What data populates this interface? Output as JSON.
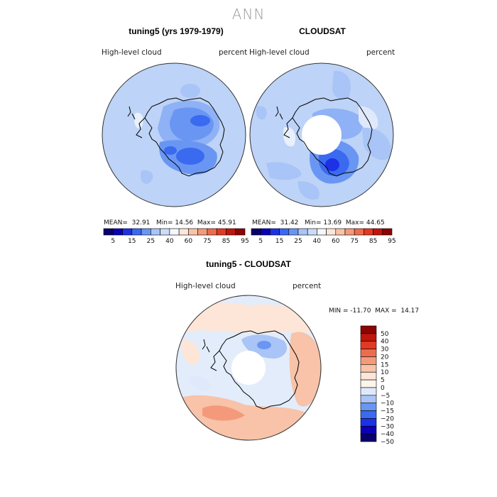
{
  "figure": {
    "title": "ANN"
  },
  "panels": [
    {
      "title": "tuning5 (yrs 1979-1979)",
      "variable": "High-level cloud",
      "units": "percent",
      "stats": {
        "mean_label": "MEAN=",
        "mean": "32.91",
        "min_label": "Min=",
        "min": "14.56",
        "max_label": "Max=",
        "max": "45.91"
      }
    },
    {
      "title": "CLOUDSAT",
      "variable": "High-level cloud",
      "units": "percent",
      "stats": {
        "mean_label": "MEAN=",
        "mean": "31.42",
        "min_label": "Min=",
        "min": "13.69",
        "max_label": "Max=",
        "max": "44.65"
      }
    },
    {
      "title": "tuning5 - CLOUDSAT",
      "variable": "High-level cloud",
      "units": "percent",
      "stats_text": "MIN = -11.70  MAX =  14.17"
    }
  ],
  "colors": {
    "ocean_base": "#bdd3f7",
    "diff_base": "#e3ecfb",
    "land_outline": "#000000"
  },
  "chart_data": [
    {
      "type": "heatmap",
      "projection": "south-polar-stereographic",
      "title": "tuning5 (yrs 1979-1979)",
      "variable": "High-level cloud",
      "units": "percent",
      "mean": 32.91,
      "min": 14.56,
      "max": 45.91,
      "colorbar": {
        "orientation": "horizontal",
        "levels": [
          5,
          10,
          15,
          20,
          25,
          30,
          40,
          50,
          60,
          70,
          75,
          80,
          85,
          90,
          95
        ],
        "tick_labels": [
          "5",
          "15",
          "25",
          "40",
          "60",
          "75",
          "85",
          "95"
        ],
        "colors": [
          "#08006e",
          "#0a00b8",
          "#1d31e6",
          "#3a6af0",
          "#6a96f3",
          "#a9c4f6",
          "#cbdcf8",
          "#f4f7fd",
          "#fde6d8",
          "#f8c3a8",
          "#f49a7b",
          "#ee6c4e",
          "#e23a22",
          "#c2150b",
          "#8c0404"
        ]
      }
    },
    {
      "type": "heatmap",
      "projection": "south-polar-stereographic",
      "title": "CLOUDSAT",
      "variable": "High-level cloud",
      "units": "percent",
      "mean": 31.42,
      "min": 13.69,
      "max": 44.65,
      "colorbar": {
        "orientation": "horizontal",
        "levels": [
          5,
          10,
          15,
          20,
          25,
          30,
          40,
          50,
          60,
          70,
          75,
          80,
          85,
          90,
          95
        ],
        "tick_labels": [
          "5",
          "15",
          "25",
          "40",
          "60",
          "75",
          "85",
          "95"
        ],
        "colors": [
          "#08006e",
          "#0a00b8",
          "#1d31e6",
          "#3a6af0",
          "#6a96f3",
          "#a9c4f6",
          "#cbdcf8",
          "#f4f7fd",
          "#fde6d8",
          "#f8c3a8",
          "#f49a7b",
          "#ee6c4e",
          "#e23a22",
          "#c2150b",
          "#8c0404"
        ]
      }
    },
    {
      "type": "heatmap",
      "projection": "south-polar-stereographic",
      "title": "tuning5 - CLOUDSAT",
      "variable": "High-level cloud",
      "units": "percent",
      "min": -11.7,
      "max": 14.17,
      "colorbar": {
        "orientation": "vertical",
        "tick_labels": [
          "50",
          "40",
          "30",
          "20",
          "15",
          "10",
          "5",
          "0",
          "-5",
          "-10",
          "-15",
          "-20",
          "-30",
          "-40",
          "-50"
        ],
        "colors": [
          "#8c0404",
          "#c2150b",
          "#e23a22",
          "#ee6c4e",
          "#f49a7b",
          "#f8c3a8",
          "#fde6d8",
          "#fdf4ec",
          "#dfe9fb",
          "#a9c4f6",
          "#6a96f3",
          "#3a6af0",
          "#1d31e6",
          "#0a00b8",
          "#08006e"
        ]
      }
    }
  ]
}
